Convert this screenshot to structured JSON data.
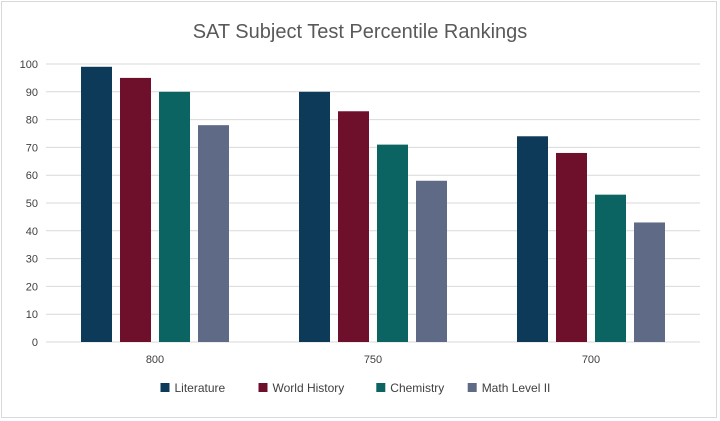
{
  "chart_data": {
    "type": "bar",
    "title": "SAT Subject Test Percentile Rankings",
    "xlabel": "",
    "ylabel": "",
    "categories": [
      "800",
      "750",
      "700"
    ],
    "series": [
      {
        "name": "Literature",
        "color": "#0e3a5a",
        "values": [
          99,
          90,
          74
        ]
      },
      {
        "name": "World History",
        "color": "#6e0f2b",
        "values": [
          95,
          83,
          68
        ]
      },
      {
        "name": "Chemistry",
        "color": "#0b6462",
        "values": [
          90,
          71,
          53
        ]
      },
      {
        "name": "Math Level II",
        "color": "#5f6b86",
        "values": [
          78,
          58,
          43
        ]
      }
    ],
    "ylim": [
      0,
      100
    ],
    "yticks": [
      0,
      10,
      20,
      30,
      40,
      50,
      60,
      70,
      80,
      90,
      100
    ],
    "grid": true,
    "legend_position": "bottom",
    "colors": {
      "gridline": "#d9d9d9",
      "axis_text": "#404040",
      "title_text": "#595959"
    }
  }
}
